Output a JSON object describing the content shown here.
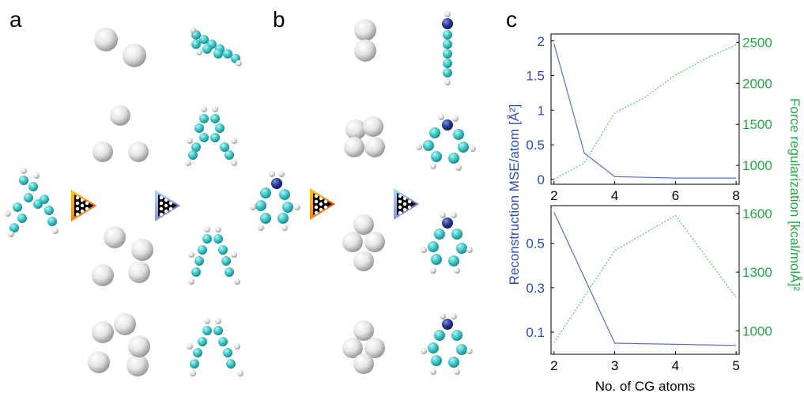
{
  "figure": {
    "panel_labels": [
      "a",
      "b",
      "c"
    ]
  },
  "colors": {
    "left_axis": "#2d4fb3",
    "right_axis": "#22aa44",
    "line_left": "#5a6fd0",
    "line_right": "#55cc66",
    "carbon": "#44cccc",
    "hydrogen": "#e4e4e4",
    "nitrogen": "#2a3a9a",
    "cg_bead": "#d8d8d8"
  },
  "icons": [
    "network-encoder-icon",
    "network-decoder-icon"
  ],
  "chart_data": [
    {
      "type": "line",
      "panel": "c-top",
      "x": [
        2,
        3,
        4,
        5,
        6,
        7,
        8
      ],
      "xlim": [
        1.9,
        8.1
      ],
      "xticks": [
        2,
        4,
        6,
        8
      ],
      "series": [
        {
          "axis": "left",
          "style": "solid",
          "values": [
            1.96,
            0.38,
            0.04,
            0.03,
            0.02,
            0.02,
            0.02
          ]
        },
        {
          "axis": "right",
          "style": "dotted",
          "values": [
            830,
            1030,
            1640,
            1830,
            2100,
            2300,
            2470
          ]
        }
      ],
      "ylim_left": [
        -0.07,
        2.1
      ],
      "yticks_left": [
        "0",
        "0.5",
        "1",
        "1.5",
        "2"
      ],
      "ytick_values_left": [
        0,
        0.5,
        1,
        1.5,
        2
      ],
      "ylim_right": [
        770,
        2600
      ],
      "yticks_right": [
        "1000",
        "1500",
        "2000",
        "2500"
      ],
      "ytick_values_right": [
        1000,
        1500,
        2000,
        2500
      ],
      "grid": false
    },
    {
      "type": "line",
      "panel": "c-bottom",
      "x": [
        2,
        3,
        4,
        5
      ],
      "xlim": [
        1.95,
        5.05
      ],
      "xticks": [
        2,
        3,
        4,
        5
      ],
      "series": [
        {
          "axis": "left",
          "style": "solid",
          "values": [
            0.64,
            0.05,
            0.045,
            0.04
          ]
        },
        {
          "axis": "right",
          "style": "dotted",
          "values": [
            940,
            1410,
            1590,
            1170
          ]
        }
      ],
      "ylim_left": [
        0.0,
        0.67
      ],
      "yticks_left": [
        "0.1",
        "0.3",
        "0.5"
      ],
      "ytick_values_left": [
        0.1,
        0.3,
        0.5
      ],
      "ylim_right": [
        880,
        1640
      ],
      "yticks_right": [
        "1000",
        "1300",
        "1600"
      ],
      "ytick_values_right": [
        1000,
        1300,
        1600
      ],
      "grid": false
    }
  ],
  "axis_titles": {
    "left": "Reconstruction MSE/atom [Å²]",
    "right": "Force regularization [kcal/molÅ]²",
    "x": "No. of CG atoms"
  }
}
